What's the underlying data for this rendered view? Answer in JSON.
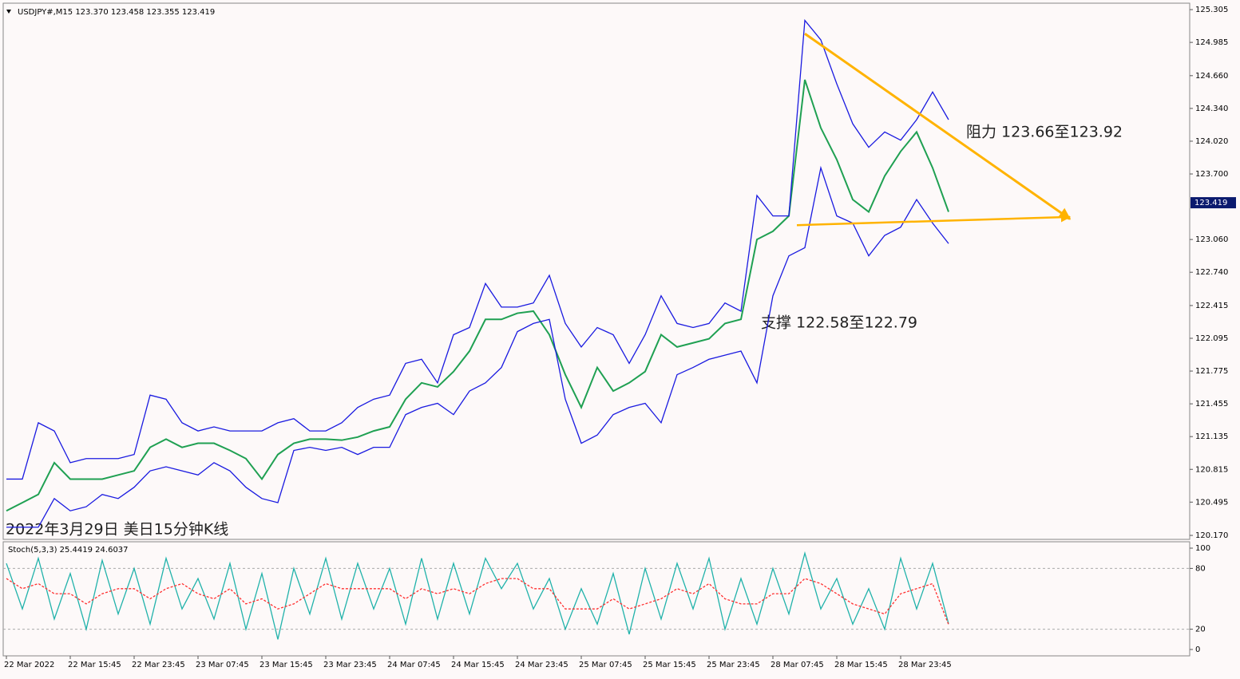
{
  "chart_data": [
    {
      "type": "line",
      "title": "USDJPY#,M15  123.370 123.458 123.355 123.419",
      "categories": [
        "22 Mar 2022",
        null,
        null,
        null,
        "22 Mar 15:45",
        null,
        null,
        null,
        "22 Mar 23:45",
        null,
        null,
        null,
        "23 Mar 07:45",
        null,
        null,
        null,
        "23 Mar 15:45",
        null,
        null,
        null,
        "23 Mar 23:45",
        null,
        null,
        null,
        "24 Mar 07:45",
        null,
        null,
        null,
        "24 Mar 15:45",
        null,
        null,
        null,
        "24 Mar 23:45",
        null,
        null,
        null,
        "25 Mar 07:45",
        null,
        null,
        null,
        "25 Mar 15:45",
        null,
        null,
        null,
        "25 Mar 23:45",
        null,
        null,
        null,
        "28 Mar 07:45",
        null,
        null,
        null,
        "28 Mar 15:45",
        null,
        null,
        null,
        "28 Mar 23:45",
        null,
        null,
        null
      ],
      "series": [
        {
          "color": "#1fa052",
          "values": [
            120.41,
            120.49,
            120.57,
            120.88,
            120.72,
            120.72,
            120.72,
            120.76,
            120.8,
            121.03,
            121.11,
            121.03,
            121.07,
            121.07,
            121.0,
            120.92,
            120.72,
            120.96,
            121.07,
            121.11,
            121.11,
            121.1,
            121.13,
            121.19,
            121.23,
            121.5,
            121.66,
            121.62,
            121.77,
            121.97,
            122.28,
            122.28,
            122.34,
            122.36,
            122.13,
            121.74,
            121.42,
            121.81,
            121.58,
            121.66,
            121.77,
            122.13,
            122.01,
            122.05,
            122.09,
            122.24,
            122.28,
            123.06,
            123.14,
            123.29,
            124.62,
            124.15,
            123.84,
            123.45,
            123.33,
            123.68,
            123.92,
            124.11,
            123.76,
            123.33
          ]
        },
        {
          "color": "#1a1ae0",
          "values": [
            120.72,
            120.72,
            121.27,
            121.19,
            120.88,
            120.92,
            120.92,
            120.92,
            120.96,
            121.54,
            121.5,
            121.27,
            121.19,
            121.23,
            121.19,
            121.19,
            121.19,
            121.27,
            121.31,
            121.19,
            121.19,
            121.27,
            121.42,
            121.5,
            121.54,
            121.85,
            121.89,
            121.66,
            122.13,
            122.2,
            122.63,
            122.4,
            122.4,
            122.44,
            122.71,
            122.24,
            122.01,
            122.2,
            122.13,
            121.85,
            122.13,
            122.51,
            122.24,
            122.2,
            122.24,
            122.44,
            122.36,
            123.49,
            123.29,
            123.29,
            125.2,
            125.01,
            124.58,
            124.19,
            123.96,
            124.11,
            124.03,
            124.23,
            124.5,
            124.23
          ]
        },
        {
          "color": "#1a1ae0",
          "values": [
            120.25,
            120.25,
            120.25,
            120.53,
            120.41,
            120.45,
            120.57,
            120.53,
            120.64,
            120.8,
            120.84,
            120.8,
            120.76,
            120.88,
            120.8,
            120.64,
            120.53,
            120.49,
            121.0,
            121.03,
            121.0,
            121.03,
            120.96,
            121.03,
            121.03,
            121.35,
            121.42,
            121.46,
            121.35,
            121.58,
            121.66,
            121.81,
            122.16,
            122.24,
            122.28,
            121.5,
            121.07,
            121.15,
            121.35,
            121.42,
            121.46,
            121.27,
            121.74,
            121.81,
            121.89,
            121.93,
            121.97,
            121.66,
            122.51,
            122.9,
            122.98,
            123.76,
            123.29,
            123.22,
            122.9,
            123.1,
            123.18,
            123.45,
            123.22,
            123.02
          ]
        }
      ],
      "ylim": [
        120.139,
        125.36
      ],
      "yticks": [
        125.305,
        124.985,
        {
          "value": 124.66,
          "label": "124.660"
        },
        {
          "value": 124.34,
          "label": "124.340"
        },
        {
          "value": 124.02,
          "label": "124.020"
        },
        {
          "value": 123.7,
          "label": "123.700"
        },
        {
          "value": 123.06,
          "label": "123.060"
        },
        {
          "value": 122.74,
          "label": "122.740"
        },
        122.415,
        122.095,
        121.775,
        121.455,
        121.135,
        120.815,
        120.495,
        {
          "value": 120.17,
          "label": "120.170"
        }
      ],
      "last_price": 123.419,
      "trendlines": [
        {
          "x": [
            50,
            66.6
          ],
          "y": [
            125.07,
            123.26
          ],
          "color": "#ffb300"
        },
        {
          "x": [
            49.5,
            66.6
          ],
          "y": [
            123.2,
            123.28
          ],
          "color": "#ffb300"
        }
      ],
      "annotations": [
        "阻力 123.66至123.92",
        "支撑 122.58至122.79",
        "2022年3月29日 美日15分钟K线"
      ]
    },
    {
      "type": "line",
      "title": "Stoch(5,3,3) 25.4419 24.6037",
      "series": [
        {
          "color": "#20b2aa",
          "values": [
            85,
            40,
            90,
            30,
            75,
            20,
            88,
            35,
            80,
            25,
            90,
            40,
            70,
            30,
            85,
            20,
            75,
            10,
            80,
            35,
            90,
            30,
            85,
            40,
            80,
            25,
            90,
            30,
            85,
            35,
            90,
            60,
            85,
            40,
            70,
            20,
            60,
            25,
            75,
            15,
            80,
            30,
            85,
            40,
            90,
            20,
            70,
            25,
            80,
            35,
            95,
            40,
            70,
            25,
            60,
            20,
            90,
            40,
            85,
            25.44
          ]
        },
        {
          "color": "#ff3030",
          "dashed": true,
          "values": [
            70,
            60,
            65,
            55,
            55,
            45,
            55,
            60,
            60,
            50,
            60,
            65,
            55,
            50,
            60,
            45,
            50,
            40,
            45,
            55,
            65,
            60,
            60,
            60,
            60,
            50,
            60,
            55,
            60,
            55,
            65,
            70,
            70,
            60,
            60,
            40,
            40,
            40,
            50,
            40,
            45,
            50,
            60,
            55,
            65,
            50,
            45,
            45,
            55,
            55,
            70,
            65,
            55,
            45,
            40,
            35,
            55,
            60,
            65,
            24.6
          ]
        }
      ],
      "ylim": [
        0,
        100
      ],
      "yticks": [
        100,
        80,
        20,
        0
      ]
    }
  ]
}
